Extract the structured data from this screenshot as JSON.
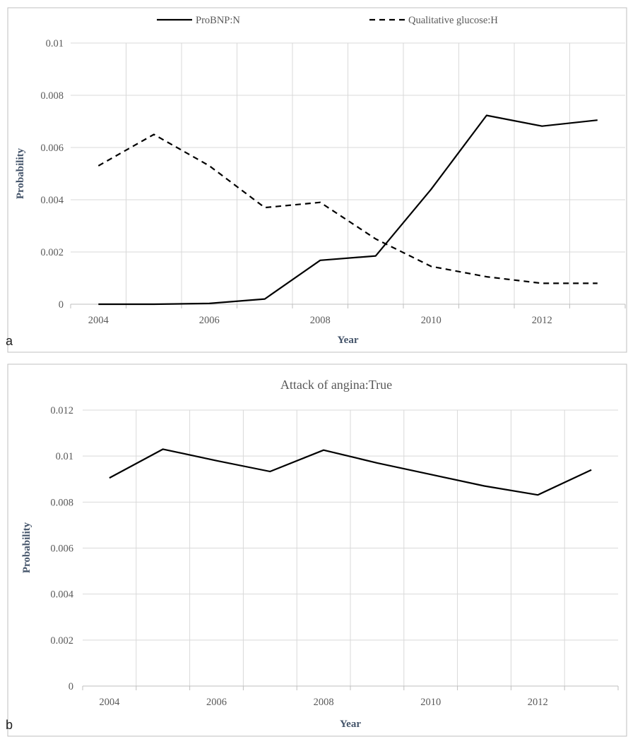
{
  "chart_data": [
    {
      "type": "line",
      "panel_label": "a",
      "title": "",
      "xlabel": "Year",
      "ylabel": "Probability",
      "x": [
        2004,
        2005,
        2006,
        2007,
        2008,
        2009,
        2010,
        2011,
        2012,
        2013
      ],
      "x_ticks": [
        "2004",
        "2006",
        "2008",
        "2010",
        "2012"
      ],
      "y_ticks": [
        "0",
        "0.002",
        "0.004",
        "0.006",
        "0.008",
        "0.01"
      ],
      "ylim": [
        0,
        0.01
      ],
      "xlim": [
        2003.5,
        2013.5
      ],
      "grid": true,
      "legend_position": "top",
      "series": [
        {
          "name": "ProBNP:N",
          "style": "solid",
          "color": "#000000",
          "values": [
            0.0,
            0.0,
            3e-05,
            0.0002,
            0.00168,
            0.00185,
            0.0044,
            0.00723,
            0.00682,
            0.00705
          ]
        },
        {
          "name": "Qualitative glucose:H",
          "style": "dashed",
          "color": "#000000",
          "values": [
            0.0053,
            0.0065,
            0.0053,
            0.0037,
            0.0039,
            0.0025,
            0.00145,
            0.00105,
            0.0008,
            0.0008
          ]
        }
      ]
    },
    {
      "type": "line",
      "panel_label": "b",
      "title": "Attack of angina:True",
      "xlabel": "Year",
      "ylabel": "Probability",
      "x": [
        2004,
        2005,
        2006,
        2007,
        2008,
        2009,
        2010,
        2011,
        2012,
        2013
      ],
      "x_ticks": [
        "2004",
        "2006",
        "2008",
        "2010",
        "2012"
      ],
      "y_ticks": [
        "0",
        "0.002",
        "0.004",
        "0.006",
        "0.008",
        "0.01",
        "0.012"
      ],
      "ylim": [
        0,
        0.012
      ],
      "xlim": [
        2003.5,
        2013.5
      ],
      "grid": true,
      "series": [
        {
          "style": "solid",
          "color": "#000000",
          "values": [
            0.00905,
            0.0103,
            0.0098,
            0.00933,
            0.01026,
            0.0097,
            0.0092,
            0.0087,
            0.00831,
            0.0094
          ]
        }
      ]
    }
  ]
}
